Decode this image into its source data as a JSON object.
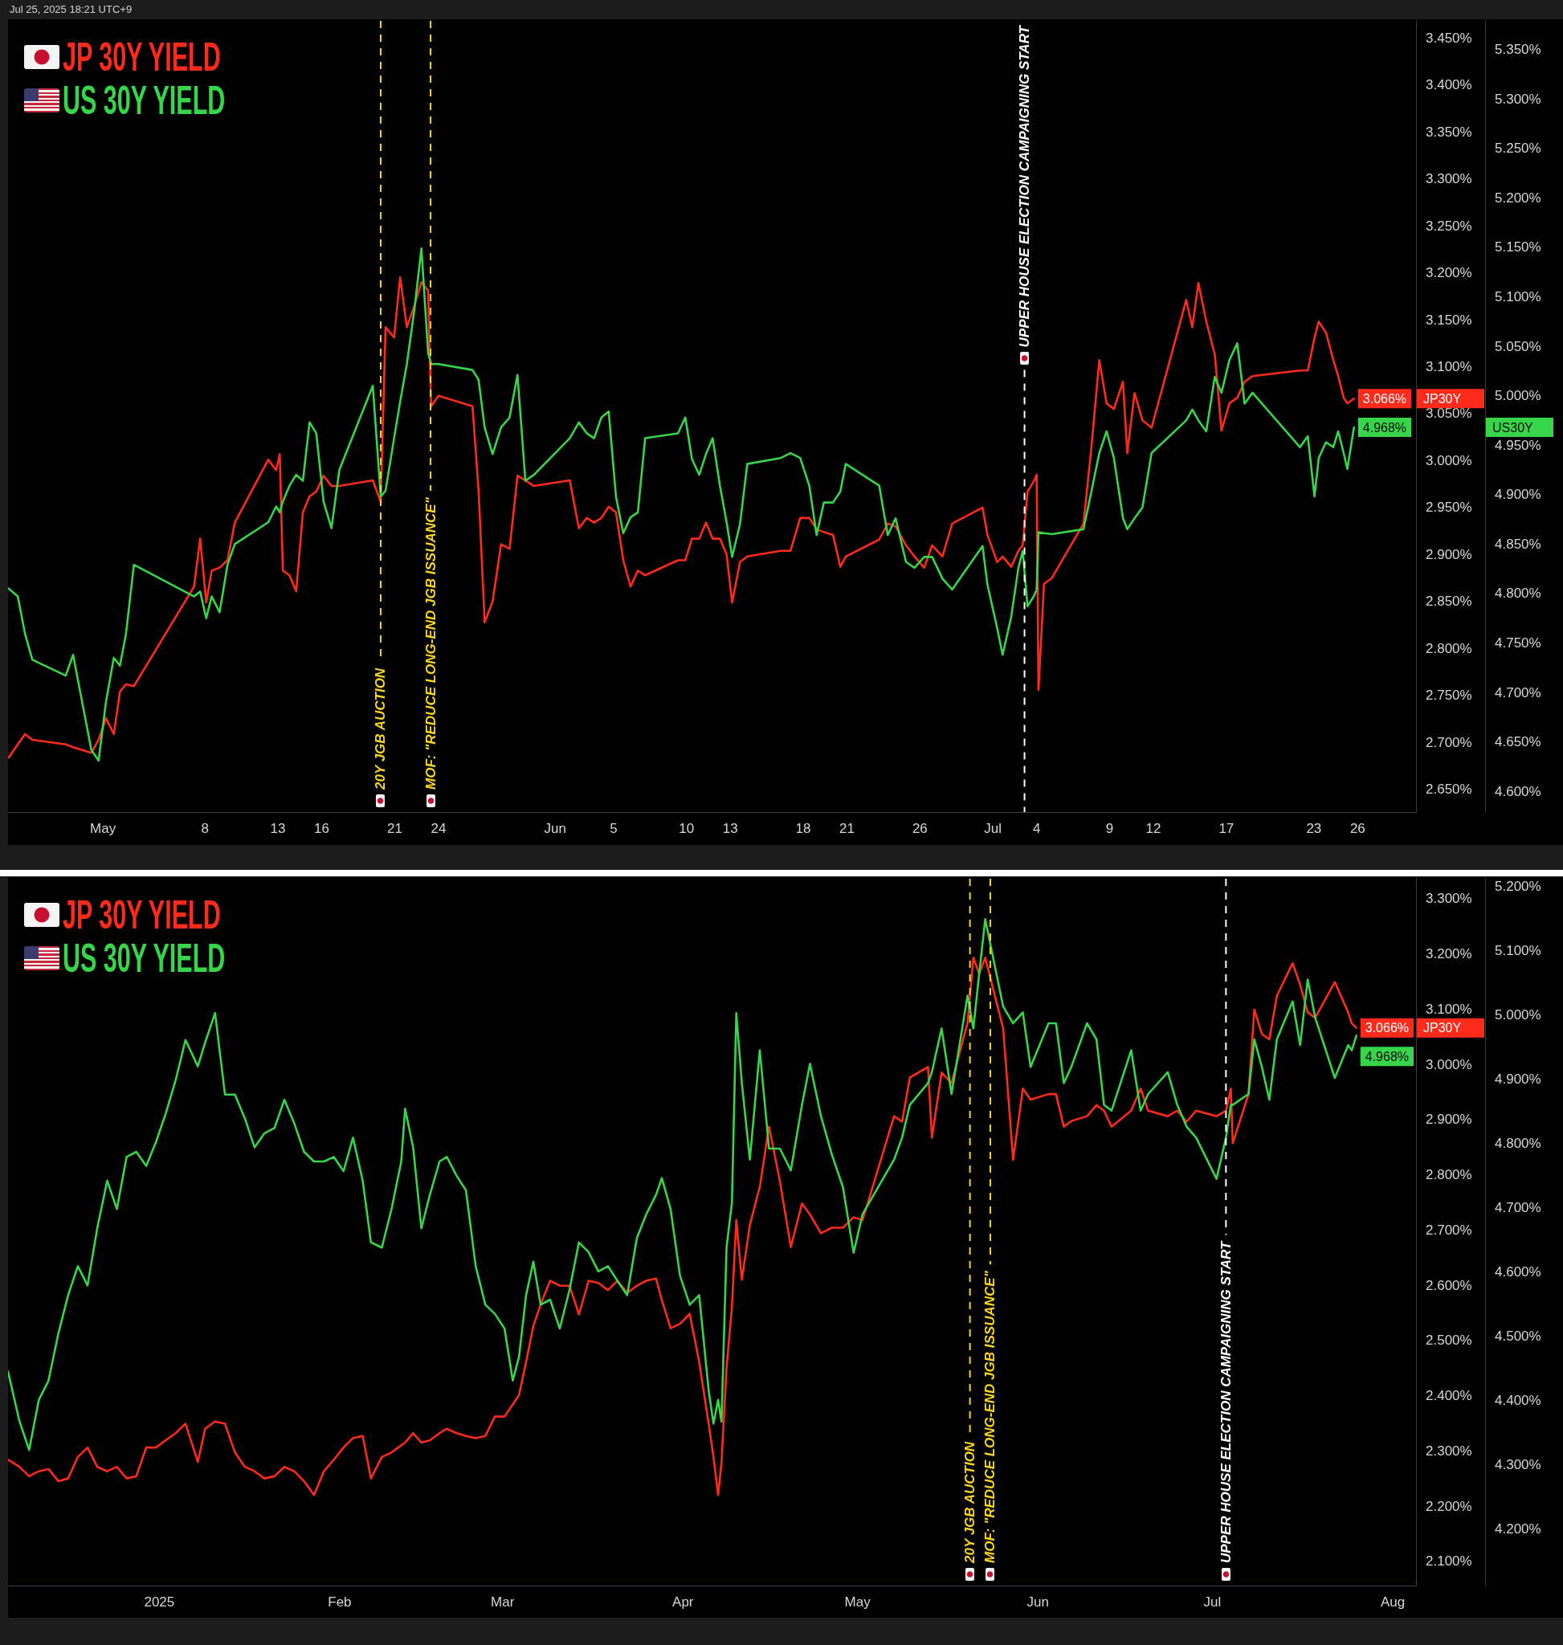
{
  "chart_data": [
    {
      "type": "line",
      "subtitle": "Jul 25, 2025 18:21 UTC+9",
      "legend": "top left",
      "marker": "none",
      "x": [
        "2025-04-24T13:00",
        "2025-04-25T04:00",
        "2025-04-25T16:00",
        "2025-04-26T04:00",
        "2025-04-28T11:00",
        "2025-04-28T23:00",
        "2025-04-30T05:00",
        "2025-04-30T17:00",
        "2025-05-01T05:00",
        "2025-05-01T18:00",
        "2025-05-02T04:00",
        "2025-05-02T14:00",
        "2025-05-03T03:00",
        "2025-05-07T06:00",
        "2025-05-07T16:00",
        "2025-05-08T02:00",
        "2025-05-08T11:00",
        "2025-05-09T00:00",
        "2025-05-09T13:00",
        "2025-05-10T01:00",
        "2025-05-12T08:00",
        "2025-05-12T21:00",
        "2025-05-13T03:00",
        "2025-05-13T08:00",
        "2025-05-13T19:00",
        "2025-05-14T06:00",
        "2025-05-14T17:00",
        "2025-05-15T04:00",
        "2025-05-15T15:00",
        "2025-05-16T03:00",
        "2025-05-16T16:00",
        "2025-05-17T05:00",
        "2025-05-19T12:00",
        "2025-05-20T01:00",
        "2025-05-20T09:00",
        "2025-05-20T23:00",
        "2025-05-21T09:00",
        "2025-05-21T20:00",
        "2025-05-22T08:00",
        "2025-05-22T20:00",
        "2025-05-23T07:00",
        "2025-05-23T12:00",
        "2025-05-24T00:00",
        "2025-05-26T08:00",
        "2025-05-26T18:00",
        "2025-05-27T04:00",
        "2025-05-27T17:00",
        "2025-05-28T07:00",
        "2025-05-28T21:00",
        "2025-05-29T10:00",
        "2025-05-29T23:00",
        "2025-05-30T13:00",
        "2025-06-02T00:00",
        "2025-06-02T15:00",
        "2025-06-03T04:00",
        "2025-06-03T16:00",
        "2025-06-04T04:00",
        "2025-06-04T16:00",
        "2025-06-05T04:00",
        "2025-06-05T16:00",
        "2025-06-06T04:00",
        "2025-06-06T16:00",
        "2025-06-07T04:00",
        "2025-06-09T10:00",
        "2025-06-09T22:00",
        "2025-06-10T09:00",
        "2025-06-10T21:00",
        "2025-06-11T08:00",
        "2025-06-11T19:00",
        "2025-06-12T07:00",
        "2025-06-12T18:00",
        "2025-06-13T03:00",
        "2025-06-13T16:00",
        "2025-06-14T04:00",
        "2025-06-16T11:00",
        "2025-06-17T03:00",
        "2025-06-17T19:00",
        "2025-06-18T10:00",
        "2025-06-18T22:00",
        "2025-06-19T10:00",
        "2025-06-20T01:00",
        "2025-06-20T13:00",
        "2025-06-20T22:00",
        "2025-06-23T05:00",
        "2025-06-23T19:00",
        "2025-06-24T08:00",
        "2025-06-25T01:00",
        "2025-06-25T15:00",
        "2025-06-26T07:00",
        "2025-06-26T20:00",
        "2025-06-27T13:00",
        "2025-06-28T05:00",
        "2025-06-30T07:00",
        "2025-06-30T15:00",
        "2025-07-01T07:00",
        "2025-07-01T16:00",
        "2025-07-02T06:00",
        "2025-07-02T18:00",
        "2025-07-03T01:00",
        "2025-07-03T09:00",
        "2025-07-03T20:00",
        "2025-07-04T00:00",
        "2025-07-04T03:00",
        "2025-07-04T12:00",
        "2025-07-05T01:00",
        "2025-07-07T05:00",
        "2025-07-07T18:00",
        "2025-07-08T07:00",
        "2025-07-08T19:00",
        "2025-07-09T07:00",
        "2025-07-09T22:00",
        "2025-07-10T05:00",
        "2025-07-10T17:00",
        "2025-07-11T06:00",
        "2025-07-11T21:00",
        "2025-07-14T06:00",
        "2025-07-14T16:00",
        "2025-07-15T02:00",
        "2025-07-15T15:00",
        "2025-07-16T05:00",
        "2025-07-16T16:00",
        "2025-07-17T05:00",
        "2025-07-17T18:00",
        "2025-07-18T06:00",
        "2025-07-18T19:00",
        "2025-07-22T01:00",
        "2025-07-22T14:00",
        "2025-07-23T01:00",
        "2025-07-23T08:00",
        "2025-07-23T20:00",
        "2025-07-24T08:00",
        "2025-07-24T16:00",
        "2025-07-25T01:00",
        "2025-07-25T07:00",
        "2025-07-25T18:00"
      ],
      "xlim": [
        "2025-04-24T12:00",
        "2025-07-30T00:00"
      ],
      "xticks": [
        {
          "value": "2025-05-01",
          "label": "May"
        },
        {
          "value": "2025-05-08",
          "label": "8"
        },
        {
          "value": "2025-05-13",
          "label": "13"
        },
        {
          "value": "2025-05-16",
          "label": "16"
        },
        {
          "value": "2025-05-21",
          "label": "21"
        },
        {
          "value": "2025-05-24",
          "label": "24"
        },
        {
          "value": "2025-06-01",
          "label": "Jun"
        },
        {
          "value": "2025-06-05",
          "label": "5"
        },
        {
          "value": "2025-06-10",
          "label": "10"
        },
        {
          "value": "2025-06-13",
          "label": "13"
        },
        {
          "value": "2025-06-18",
          "label": "18"
        },
        {
          "value": "2025-06-21",
          "label": "21"
        },
        {
          "value": "2025-06-26",
          "label": "26"
        },
        {
          "value": "2025-07-01",
          "label": "Jul"
        },
        {
          "value": "2025-07-04",
          "label": "4"
        },
        {
          "value": "2025-07-09",
          "label": "9"
        },
        {
          "value": "2025-07-12",
          "label": "12"
        },
        {
          "value": "2025-07-17",
          "label": "17"
        },
        {
          "value": "2025-07-23",
          "label": "23"
        },
        {
          "value": "2025-07-26",
          "label": "26"
        }
      ],
      "ylim": [
        2.626,
        3.468
      ],
      "yticks": [
        {
          "value": 2.65,
          "label": "2.650%"
        },
        {
          "value": 2.7,
          "label": "2.700%"
        },
        {
          "value": 2.75,
          "label": "2.750%"
        },
        {
          "value": 2.8,
          "label": "2.800%"
        },
        {
          "value": 2.85,
          "label": "2.850%"
        },
        {
          "value": 2.9,
          "label": "2.900%"
        },
        {
          "value": 2.95,
          "label": "2.950%"
        },
        {
          "value": 3,
          "label": "3.000%"
        },
        {
          "value": 3.05,
          "label": "3.050%"
        },
        {
          "value": 3.1,
          "label": "3.100%"
        },
        {
          "value": 3.15,
          "label": "3.150%"
        },
        {
          "value": 3.2,
          "label": "3.200%"
        },
        {
          "value": 3.25,
          "label": "3.250%"
        },
        {
          "value": 3.3,
          "label": "3.300%"
        },
        {
          "value": 3.35,
          "label": "3.350%"
        },
        {
          "value": 3.4,
          "label": "3.400%"
        },
        {
          "value": 3.45,
          "label": "3.450%"
        }
      ],
      "y2lim": [
        4.579,
        5.379
      ],
      "y2ticks": [
        {
          "value": 4.6,
          "label": "4.600%"
        },
        {
          "value": 4.65,
          "label": "4.650%"
        },
        {
          "value": 4.7,
          "label": "4.700%"
        },
        {
          "value": 4.75,
          "label": "4.750%"
        },
        {
          "value": 4.8,
          "label": "4.800%"
        },
        {
          "value": 4.85,
          "label": "4.850%"
        },
        {
          "value": 4.9,
          "label": "4.900%"
        },
        {
          "value": 4.95,
          "label": "4.950%"
        },
        {
          "value": 5,
          "label": "5.000%"
        },
        {
          "value": 5.05,
          "label": "5.050%"
        },
        {
          "value": 5.1,
          "label": "5.100%"
        },
        {
          "value": 5.15,
          "label": "5.150%"
        },
        {
          "value": 5.2,
          "label": "5.200%"
        },
        {
          "value": 5.25,
          "label": "5.250%"
        },
        {
          "value": 5.3,
          "label": "5.300%"
        },
        {
          "value": 5.35,
          "label": "5.350%"
        }
      ],
      "series": [
        {
          "name": "JP 30Y YIELD",
          "color": "#ff2a1a",
          "axis": "y",
          "values": [
            2.684,
            2.698,
            2.709,
            2.703,
            2.698,
            2.695,
            2.689,
            2.703,
            2.726,
            2.709,
            2.754,
            2.762,
            2.76,
            2.866,
            2.917,
            2.849,
            2.883,
            2.886,
            2.894,
            2.934,
            3.001,
            2.99,
            3.007,
            2.883,
            2.878,
            2.861,
            2.945,
            2.962,
            2.967,
            2.984,
            2.973,
            2.973,
            2.979,
            2.956,
            3.142,
            3.131,
            3.195,
            3.142,
            3.164,
            3.19,
            3.181,
            3.058,
            3.069,
            3.058,
            2.968,
            2.828,
            2.85,
            2.911,
            2.906,
            2.984,
            2.979,
            2.973,
            2.979,
            2.928,
            2.939,
            2.934,
            2.939,
            2.951,
            2.945,
            2.894,
            2.866,
            2.883,
            2.878,
            2.894,
            2.894,
            2.917,
            2.917,
            2.934,
            2.917,
            2.917,
            2.9,
            2.849,
            2.892,
            2.898,
            2.904,
            2.904,
            2.939,
            2.939,
            2.927,
            2.924,
            2.921,
            2.887,
            2.898,
            2.916,
            2.933,
            2.93,
            2.91,
            2.898,
            2.886,
            2.91,
            2.898,
            2.933,
            2.95,
            2.921,
            2.892,
            2.898,
            2.887,
            2.904,
            2.91,
            2.967,
            2.979,
            2.985,
            2.756,
            2.869,
            2.875,
            2.933,
            3.014,
            3.107,
            3.061,
            3.055,
            3.084,
            3.008,
            3.072,
            3.043,
            3.035,
            3.171,
            3.142,
            3.189,
            3.148,
            3.113,
            3.032,
            3.061,
            3.067,
            3.084,
            3.09,
            3.096,
            3.096,
            3.131,
            3.148,
            3.136,
            3.107,
            3.09,
            3.067,
            3.061,
            3.066
          ],
          "value_labels": [
            null,
            null,
            null,
            null,
            null,
            null,
            null,
            null,
            null,
            null,
            null,
            null,
            null,
            null,
            null,
            null,
            null,
            null,
            null,
            null,
            null,
            null,
            null,
            null,
            null,
            null,
            null,
            null,
            null,
            null,
            null,
            null,
            null,
            null,
            null,
            null,
            null,
            null,
            null,
            null,
            null,
            null,
            null,
            null,
            null,
            null,
            null,
            null,
            null,
            null,
            null,
            null,
            null,
            null,
            null,
            null,
            null,
            null,
            null,
            null,
            null,
            null,
            null,
            null,
            null,
            null,
            null,
            null,
            null,
            null,
            null,
            null,
            null,
            null,
            null,
            null,
            null,
            null,
            null,
            null,
            null,
            null,
            null,
            null,
            null,
            null,
            null,
            null,
            null,
            null,
            null,
            null,
            null,
            null,
            null,
            null,
            null,
            null,
            null,
            null,
            null,
            null,
            null,
            null,
            null,
            null,
            null,
            null,
            null,
            null,
            null,
            null,
            null,
            null,
            null,
            null,
            null,
            null,
            null,
            null,
            null,
            null,
            null,
            null,
            null,
            null,
            null,
            null,
            null,
            null,
            null,
            null,
            null,
            null,
            "3.066%"
          ]
        },
        {
          "name": "US 30Y YIELD",
          "color": "#37d64a",
          "axis": "y2",
          "values": [
            4.805,
            4.797,
            4.759,
            4.733,
            4.717,
            4.738,
            4.642,
            4.631,
            4.69,
            4.735,
            4.727,
            4.759,
            4.829,
            4.797,
            4.802,
            4.775,
            4.797,
            4.781,
            4.829,
            4.85,
            4.872,
            4.888,
            4.882,
            4.893,
            4.909,
            4.92,
            4.914,
            4.973,
            4.962,
            4.893,
            4.866,
            4.925,
            5.01,
            4.898,
            4.904,
            4.957,
            4.994,
            5.032,
            5.085,
            5.149,
            5.043,
            5.032,
            5.032,
            5.026,
            5.016,
            4.968,
            4.941,
            4.968,
            4.978,
            5.021,
            4.914,
            4.92,
            4.957,
            4.973,
            4.962,
            4.957,
            4.978,
            4.984,
            4.898,
            4.861,
            4.877,
            4.882,
            4.957,
            4.962,
            4.978,
            4.936,
            4.92,
            4.941,
            4.957,
            4.909,
            4.872,
            4.837,
            4.87,
            4.931,
            4.937,
            4.942,
            4.937,
            4.909,
            4.859,
            4.892,
            4.892,
            4.903,
            4.931,
            4.909,
            4.859,
            4.876,
            4.832,
            4.826,
            4.837,
            4.837,
            4.815,
            4.804,
            4.848,
            4.809,
            4.765,
            4.738,
            4.776,
            4.826,
            4.843,
            4.787,
            4.798,
            4.804,
            4.862,
            4.861,
            4.86,
            4.865,
            4.903,
            4.942,
            4.964,
            4.937,
            4.876,
            4.865,
            4.876,
            4.887,
            4.942,
            4.975,
            4.986,
            4.975,
            4.964,
            5.019,
            5.003,
            5.036,
            5.053,
            4.992,
            5.003,
            4.948,
            4.959,
            4.898,
            4.937,
            4.953,
            4.948,
            4.964,
            4.942,
            4.926,
            4.968
          ],
          "value_labels": [
            null,
            null,
            null,
            null,
            null,
            null,
            null,
            null,
            null,
            null,
            null,
            null,
            null,
            null,
            null,
            null,
            null,
            null,
            null,
            null,
            null,
            null,
            null,
            null,
            null,
            null,
            null,
            null,
            null,
            null,
            null,
            null,
            null,
            null,
            null,
            null,
            null,
            null,
            null,
            null,
            null,
            null,
            null,
            null,
            null,
            null,
            null,
            null,
            null,
            null,
            null,
            null,
            null,
            null,
            null,
            null,
            null,
            null,
            null,
            null,
            null,
            null,
            null,
            null,
            null,
            null,
            null,
            null,
            null,
            null,
            null,
            null,
            null,
            null,
            null,
            null,
            null,
            null,
            null,
            null,
            null,
            null,
            null,
            null,
            null,
            null,
            null,
            null,
            null,
            null,
            null,
            null,
            null,
            null,
            null,
            null,
            null,
            null,
            null,
            null,
            null,
            null,
            null,
            null,
            null,
            null,
            null,
            null,
            null,
            null,
            null,
            null,
            null,
            null,
            null,
            null,
            null,
            null,
            null,
            null,
            null,
            null,
            null,
            null,
            null,
            null,
            null,
            null,
            null,
            null,
            null,
            null,
            null,
            null,
            "4.968%"
          ]
        }
      ],
      "ref_lines": [
        {
          "axis": "x",
          "value": "2025-05-20T01:00",
          "label": "20Y JGB AUCTION",
          "color": "#f7d51d",
          "line_style": "dashed"
        },
        {
          "axis": "x",
          "value": "2025-05-23T11:00",
          "label": "MOF: \"REDUCE LONG-END JGB ISSUANCE\"",
          "color": "#f7d51d",
          "line_style": "dashed"
        },
        {
          "axis": "x",
          "value": "2025-07-03T04:00",
          "label": "UPPER HOUSE ELECTION CAMPAIGNING START",
          "color": "#ffffff",
          "line_style": "dashed"
        }
      ],
      "annotations": [
        "JP30Y",
        "US30Y"
      ]
    },
    {
      "type": "line",
      "legend": "top left",
      "marker": "none",
      "x": [
        "2024-12-06T00:00",
        "2024-12-07T23:00",
        "2024-12-09T15:00",
        "2024-12-11T07:00",
        "2024-12-12T23:00",
        "2024-12-14T16:00",
        "2024-12-16T08:00",
        "2024-12-18T00:00",
        "2024-12-19T16:00",
        "2024-12-21T08:00",
        "2024-12-23T01:00",
        "2024-12-24T17:00",
        "2024-12-26T09:00",
        "2024-12-28T01:00",
        "2024-12-29T18:00",
        "2024-12-31T10:00",
        "2025-01-02T02:00",
        "2025-01-03T19:00",
        "2025-01-05T12:00",
        "2025-01-07T15:00",
        "2025-01-08T21:00",
        "2025-01-10T14:00",
        "2025-01-12T07:00",
        "2025-01-14T00:00",
        "2025-01-15T17:00",
        "2025-01-17T09:00",
        "2025-01-19T02:00",
        "2025-01-20T19:00",
        "2025-01-22T12:00",
        "2025-01-24T05:00",
        "2025-01-25T21:00",
        "2025-01-27T14:00",
        "2025-01-29T07:00",
        "2025-01-31T00:00",
        "2025-02-01T16:00",
        "2025-02-03T07:00",
        "2025-02-04T23:00",
        "2025-02-06T09:00",
        "2025-02-08T06:00",
        "2025-02-09T22:00",
        "2025-02-11T14:00",
        "2025-02-12T06:00",
        "2025-02-13T15:00",
        "2025-02-15T01:00",
        "2025-02-16T12:00",
        "2025-02-18T04:00",
        "2025-02-19T10:00",
        "2025-02-21T02:00",
        "2025-02-22T17:00",
        "2025-02-24T09:00",
        "2025-02-26T01:00",
        "2025-02-27T16:00",
        "2025-03-01T08:00",
        "2025-03-02T18:00",
        "2025-03-03T20:00",
        "2025-03-05T01:00",
        "2025-03-06T07:00",
        "2025-03-07T13:00",
        "2025-03-09T04:00",
        "2025-03-10T20:00",
        "2025-03-12T12:00",
        "2025-03-14T03:00",
        "2025-03-15T19:00",
        "2025-03-17T11:00",
        "2025-03-19T03:00",
        "2025-03-20T18:00",
        "2025-03-22T10:00",
        "2025-03-24T02:00",
        "2025-03-25T17:00",
        "2025-03-27T09:00",
        "2025-03-28T09:00",
        "2025-03-29T21:00",
        "2025-03-31T12:00",
        "2025-04-02T04:00",
        "2025-04-03T19:00",
        "2025-04-05T10:00",
        "2025-04-06T06:00",
        "2025-04-07T01:00",
        "2025-04-07T15:00",
        "2025-04-08T12:00",
        "2025-04-09T10:00",
        "2025-04-10T04:00",
        "2025-04-11T03:00",
        "2025-04-12T12:00",
        "2025-04-14T05:00",
        "2025-04-15T19:00",
        "2025-04-17T16:00",
        "2025-04-19T13:00",
        "2025-04-21T11:00",
        "2025-04-22T20:00",
        "2025-04-24T17:00",
        "2025-04-26T14:00",
        "2025-04-28T12:00",
        "2025-04-30T08:00",
        "2025-05-01T21:00",
        "2025-05-07T07:00",
        "2025-05-08T16:00",
        "2025-05-10T00:00",
        "2025-05-13T03:00",
        "2025-05-13T19:00",
        "2025-05-15T11:00",
        "2025-05-17T04:00",
        "2025-05-19T22:00",
        "2025-05-20T22:00",
        "2025-05-21T22:00",
        "2025-05-22T23:00",
        "2025-05-26T01:00",
        "2025-05-27T18:00",
        "2025-05-29T10:00",
        "2025-05-30T18:00",
        "2025-06-02T20:00",
        "2025-06-04T03:00",
        "2025-06-05T11:00",
        "2025-06-06T18:00",
        "2025-06-09T11:00",
        "2025-06-11T02:00",
        "2025-06-12T09:00",
        "2025-06-13T16:00",
        "2025-06-17T01:00",
        "2025-06-18T16:00",
        "2025-06-19T23:00",
        "2025-06-23T08:00",
        "2025-06-24T23:00",
        "2025-06-26T14:00",
        "2025-06-28T05:00",
        "2025-07-01T17:00",
        "2025-07-03T08:00",
        "2025-07-04T04:00",
        "2025-07-04T12:00",
        "2025-07-07T05:00",
        "2025-07-08T05:00",
        "2025-07-09T12:00",
        "2025-07-10T19:00",
        "2025-07-12T02:00",
        "2025-07-14T19:00",
        "2025-07-16T02:00",
        "2025-07-17T09:00",
        "2025-07-18T16:00",
        "2025-07-22T01:00",
        "2025-07-24T08:00",
        "2025-07-24T23:00",
        "2025-07-25T18:00"
      ],
      "xlim": [
        "2024-12-06",
        "2025-08-05"
      ],
      "xticks": [
        {
          "value": "2025-01-01",
          "label": "2025"
        },
        {
          "value": "2025-02-01",
          "label": "Feb"
        },
        {
          "value": "2025-03-01",
          "label": "Mar"
        },
        {
          "value": "2025-04-01",
          "label": "Apr"
        },
        {
          "value": "2025-05-01",
          "label": "May"
        },
        {
          "value": "2025-06-01",
          "label": "Jun"
        },
        {
          "value": "2025-07-01",
          "label": "Jul"
        },
        {
          "value": "2025-08-01",
          "label": "Aug"
        }
      ],
      "ylim": [
        2.056,
        3.336
      ],
      "yticks": [
        {
          "value": 2.1,
          "label": "2.100%"
        },
        {
          "value": 2.2,
          "label": "2.200%"
        },
        {
          "value": 2.3,
          "label": "2.300%"
        },
        {
          "value": 2.4,
          "label": "2.400%"
        },
        {
          "value": 2.5,
          "label": "2.500%"
        },
        {
          "value": 2.6,
          "label": "2.600%"
        },
        {
          "value": 2.7,
          "label": "2.700%"
        },
        {
          "value": 2.8,
          "label": "2.800%"
        },
        {
          "value": 2.9,
          "label": "2.900%"
        },
        {
          "value": 3,
          "label": "3.000%"
        },
        {
          "value": 3.1,
          "label": "3.100%"
        },
        {
          "value": 3.2,
          "label": "3.200%"
        },
        {
          "value": 3.3,
          "label": "3.300%"
        }
      ],
      "y2lim": [
        4.112,
        5.212
      ],
      "y2ticks": [
        {
          "value": 4.2,
          "label": "4.200%"
        },
        {
          "value": 4.3,
          "label": "4.300%"
        },
        {
          "value": 4.4,
          "label": "4.400%"
        },
        {
          "value": 4.5,
          "label": "4.500%"
        },
        {
          "value": 4.6,
          "label": "4.600%"
        },
        {
          "value": 4.7,
          "label": "4.700%"
        },
        {
          "value": 4.8,
          "label": "4.800%"
        },
        {
          "value": 4.9,
          "label": "4.900%"
        },
        {
          "value": 5,
          "label": "5.000%"
        },
        {
          "value": 5.1,
          "label": "5.100%"
        },
        {
          "value": 5.2,
          "label": "5.200%"
        }
      ],
      "series": [
        {
          "name": "JP 30Y YIELD",
          "color": "#ff2a1a",
          "axis": "y",
          "values": [
            2.284,
            2.271,
            2.254,
            2.263,
            2.267,
            2.245,
            2.25,
            2.289,
            2.306,
            2.271,
            2.263,
            2.271,
            2.25,
            2.254,
            2.306,
            2.306,
            2.319,
            2.332,
            2.349,
            2.28,
            2.34,
            2.353,
            2.349,
            2.297,
            2.271,
            2.263,
            2.25,
            2.254,
            2.271,
            2.263,
            2.245,
            2.22,
            2.263,
            2.284,
            2.306,
            2.323,
            2.327,
            2.25,
            2.289,
            2.297,
            2.31,
            2.315,
            2.332,
            2.315,
            2.319,
            2.332,
            2.34,
            2.332,
            2.327,
            2.323,
            2.327,
            2.362,
            2.362,
            2.384,
            2.401,
            2.461,
            2.526,
            2.565,
            2.608,
            2.599,
            2.599,
            2.547,
            2.608,
            2.604,
            2.591,
            2.608,
            2.586,
            2.599,
            2.608,
            2.612,
            2.573,
            2.522,
            2.53,
            2.548,
            2.461,
            2.349,
            2.289,
            2.22,
            2.278,
            2.451,
            2.56,
            2.718,
            2.61,
            2.709,
            2.778,
            2.887,
            2.788,
            2.669,
            2.748,
            2.728,
            2.694,
            2.704,
            2.704,
            2.723,
            2.718,
            2.906,
            2.896,
            2.976,
            2.995,
            2.867,
            2.985,
            2.966,
            3.075,
            3.193,
            3.164,
            3.193,
            3.065,
            2.827,
            2.956,
            2.936,
            2.946,
            2.946,
            2.887,
            2.897,
            2.906,
            2.926,
            2.916,
            2.887,
            2.916,
            2.956,
            2.916,
            2.906,
            2.916,
            2.896,
            2.916,
            2.906,
            2.916,
            2.956,
            2.857,
            2.946,
            3.099,
            3.055,
            3.045,
            3.124,
            3.183,
            3.144,
            3.094,
            3.084,
            3.149,
            3.094,
            3.074,
            3.066
          ],
          "value_labels": [
            null,
            null,
            null,
            null,
            null,
            null,
            null,
            null,
            null,
            null,
            null,
            null,
            null,
            null,
            null,
            null,
            null,
            null,
            null,
            null,
            null,
            null,
            null,
            null,
            null,
            null,
            null,
            null,
            null,
            null,
            null,
            null,
            null,
            null,
            null,
            null,
            null,
            null,
            null,
            null,
            null,
            null,
            null,
            null,
            null,
            null,
            null,
            null,
            null,
            null,
            null,
            null,
            null,
            null,
            null,
            null,
            null,
            null,
            null,
            null,
            null,
            null,
            null,
            null,
            null,
            null,
            null,
            null,
            null,
            null,
            null,
            null,
            null,
            null,
            null,
            null,
            null,
            null,
            null,
            null,
            null,
            null,
            null,
            null,
            null,
            null,
            null,
            null,
            null,
            null,
            null,
            null,
            null,
            null,
            null,
            null,
            null,
            null,
            null,
            null,
            null,
            null,
            null,
            null,
            null,
            null,
            null,
            null,
            null,
            null,
            null,
            null,
            null,
            null,
            null,
            null,
            null,
            null,
            null,
            null,
            null,
            null,
            null,
            null,
            null,
            null,
            null,
            null,
            null,
            null,
            null,
            null,
            null,
            null,
            null,
            null,
            null,
            null,
            null,
            null,
            null,
            "3.066%"
          ]
        },
        {
          "name": "US 30Y YIELD",
          "color": "#37d64a",
          "axis": "y2",
          "values": [
            4.445,
            4.368,
            4.323,
            4.401,
            4.431,
            4.505,
            4.564,
            4.609,
            4.579,
            4.668,
            4.742,
            4.698,
            4.779,
            4.787,
            4.765,
            4.802,
            4.846,
            4.898,
            4.961,
            4.92,
            4.957,
            5.003,
            4.876,
            4.876,
            4.839,
            4.794,
            4.816,
            4.824,
            4.868,
            4.831,
            4.787,
            4.772,
            4.772,
            4.779,
            4.757,
            4.809,
            4.742,
            4.646,
            4.638,
            4.698,
            4.772,
            4.854,
            4.794,
            4.668,
            4.72,
            4.772,
            4.779,
            4.75,
            4.727,
            4.609,
            4.549,
            4.535,
            4.512,
            4.431,
            4.468,
            4.564,
            4.616,
            4.549,
            4.557,
            4.512,
            4.572,
            4.646,
            4.631,
            4.601,
            4.609,
            4.586,
            4.564,
            4.653,
            4.69,
            4.72,
            4.746,
            4.698,
            4.594,
            4.549,
            4.564,
            4.416,
            4.364,
            4.401,
            4.367,
            4.639,
            4.707,
            5.003,
            4.894,
            4.775,
            4.945,
            4.792,
            4.792,
            4.758,
            4.86,
            4.924,
            4.843,
            4.783,
            4.732,
            4.63,
            4.69,
            4.775,
            4.809,
            4.86,
            4.894,
            4.911,
            4.979,
            4.877,
            5.03,
            4.979,
            5.064,
            5.149,
            5.013,
            4.987,
            5.004,
            4.919,
            4.987,
            4.987,
            4.894,
            4.919,
            4.987,
            4.962,
            4.86,
            4.851,
            4.945,
            4.851,
            4.877,
            4.911,
            4.86,
            4.826,
            4.809,
            4.745,
            4.809,
            4.86,
            4.86,
            4.877,
            4.962,
            4.919,
            4.868,
            4.962,
            5.021,
            4.953,
            5.055,
            4.996,
            4.902,
            4.953,
            4.945,
            4.968
          ],
          "value_labels": [
            null,
            null,
            null,
            null,
            null,
            null,
            null,
            null,
            null,
            null,
            null,
            null,
            null,
            null,
            null,
            null,
            null,
            null,
            null,
            null,
            null,
            null,
            null,
            null,
            null,
            null,
            null,
            null,
            null,
            null,
            null,
            null,
            null,
            null,
            null,
            null,
            null,
            null,
            null,
            null,
            null,
            null,
            null,
            null,
            null,
            null,
            null,
            null,
            null,
            null,
            null,
            null,
            null,
            null,
            null,
            null,
            null,
            null,
            null,
            null,
            null,
            null,
            null,
            null,
            null,
            null,
            null,
            null,
            null,
            null,
            null,
            null,
            null,
            null,
            null,
            null,
            null,
            null,
            null,
            null,
            null,
            null,
            null,
            null,
            null,
            null,
            null,
            null,
            null,
            null,
            null,
            null,
            null,
            null,
            null,
            null,
            null,
            null,
            null,
            null,
            null,
            null,
            null,
            null,
            null,
            null,
            null,
            null,
            null,
            null,
            null,
            null,
            null,
            null,
            null,
            null,
            null,
            null,
            null,
            null,
            null,
            null,
            null,
            null,
            null,
            null,
            null,
            null,
            null,
            null,
            null,
            null,
            null,
            null,
            null,
            null,
            null,
            null,
            null,
            null,
            null,
            "4.968%"
          ]
        }
      ],
      "ref_lines": [
        {
          "axis": "x",
          "value": "2025-05-20T08:00",
          "label": "20Y JGB AUCTION",
          "color": "#f7d51d",
          "line_style": "dashed"
        },
        {
          "axis": "x",
          "value": "2025-05-23T20:00",
          "label": "MOF: \"REDUCE LONG-END JGB ISSUANCE\"",
          "color": "#f7d51d",
          "line_style": "dashed"
        },
        {
          "axis": "x",
          "value": "2025-07-03T08:00",
          "label": "UPPER HOUSE ELECTION CAMPAIGNING START",
          "color": "#ffffff",
          "line_style": "dashed"
        }
      ],
      "annotations": [
        "JP30Y"
      ]
    }
  ]
}
